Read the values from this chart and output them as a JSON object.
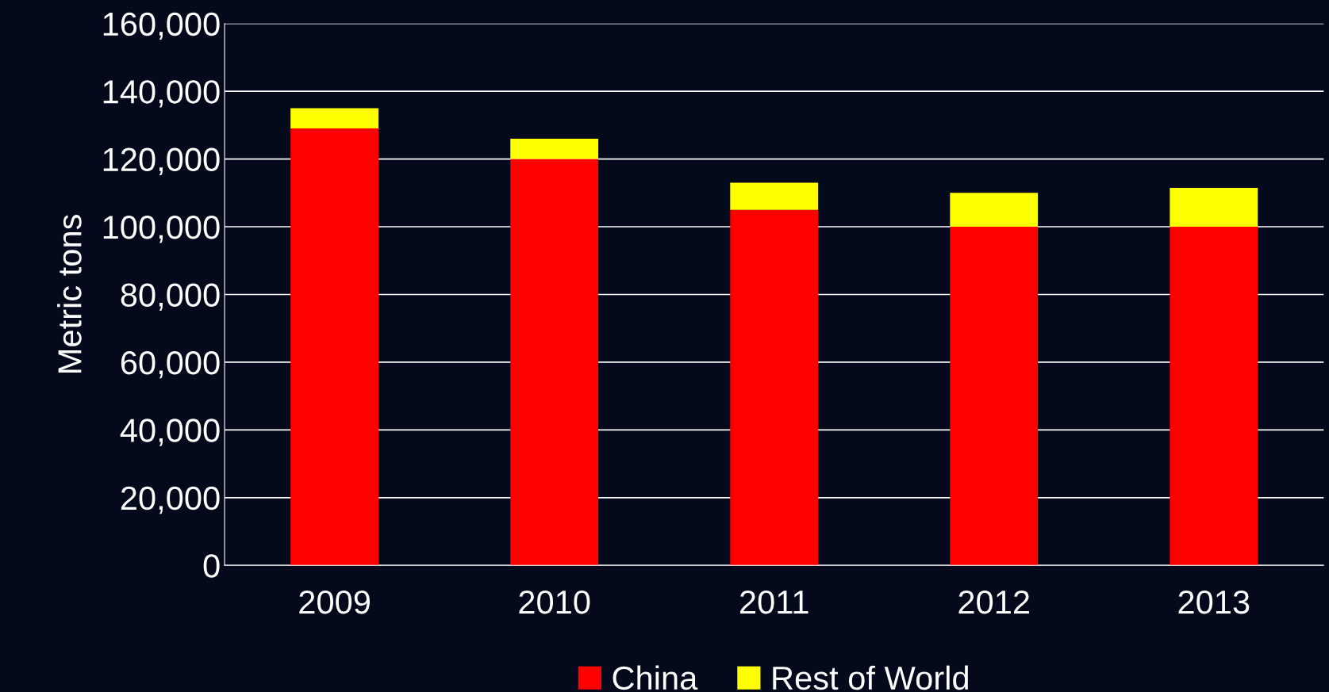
{
  "chart_data": {
    "type": "bar",
    "ylabel": "Metric tons",
    "stacked": true,
    "categories": [
      "2009",
      "2010",
      "2011",
      "2012",
      "2013"
    ],
    "series": [
      {
        "name": "China",
        "color": "#ff0000",
        "values": [
          129000,
          120000,
          105000,
          100000,
          100000
        ]
      },
      {
        "name": "Rest of World",
        "color": "#ffff00",
        "values": [
          6000,
          6000,
          8000,
          10000,
          11500
        ]
      }
    ],
    "ylim": [
      0,
      160000
    ],
    "yticks": [
      {
        "value": 0,
        "label": "0"
      },
      {
        "value": 20000,
        "label": "20,000"
      },
      {
        "value": 40000,
        "label": "40,000"
      },
      {
        "value": 60000,
        "label": "60,000"
      },
      {
        "value": 80000,
        "label": "80,000"
      },
      {
        "value": 100000,
        "label": "100,000"
      },
      {
        "value": 120000,
        "label": "120,000"
      },
      {
        "value": 140000,
        "label": "140,000"
      },
      {
        "value": 160000,
        "label": "160,000"
      }
    ],
    "grid": "y",
    "legend": "bottom"
  }
}
